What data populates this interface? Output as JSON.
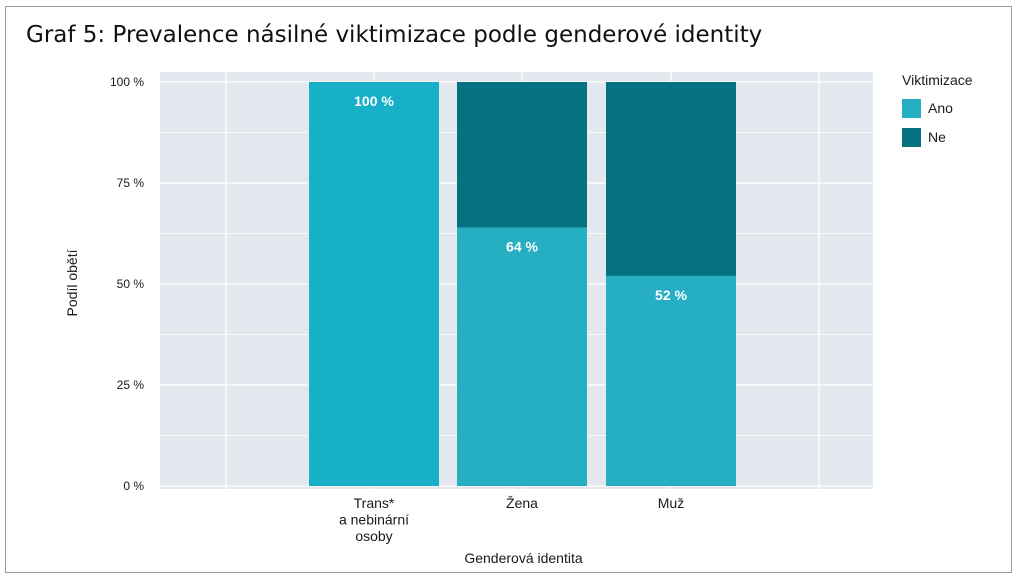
{
  "chart_data": {
    "type": "bar",
    "stacked": true,
    "percent": true,
    "title": "Graf 5: Prevalence násilné viktimizace podle genderové identity",
    "xlabel": "Genderová identita",
    "ylabel": "Podíl obětí",
    "categories": [
      [
        "Trans*",
        "a nebinární",
        "osoby"
      ],
      [
        "Žena"
      ],
      [
        "Muž"
      ]
    ],
    "yticks": [
      "0 %",
      "25 %",
      "50 %",
      "75 %",
      "100 %"
    ],
    "ylim": [
      0,
      100
    ],
    "grid": true,
    "legend": {
      "title": "Viktimizace",
      "placement": "right"
    },
    "series": [
      {
        "name": "Ano",
        "color": "#26aec2",
        "values": [
          100,
          64,
          52
        ],
        "labels": [
          "100 %",
          "64 %",
          "52 %"
        ]
      },
      {
        "name": "Ne",
        "color": "#067180",
        "values": [
          0,
          36,
          48
        ]
      }
    ],
    "first_bar_color": "#17b0c8"
  },
  "colors": {
    "panel": "#e2e8ed",
    "grid": "#ffffff"
  }
}
